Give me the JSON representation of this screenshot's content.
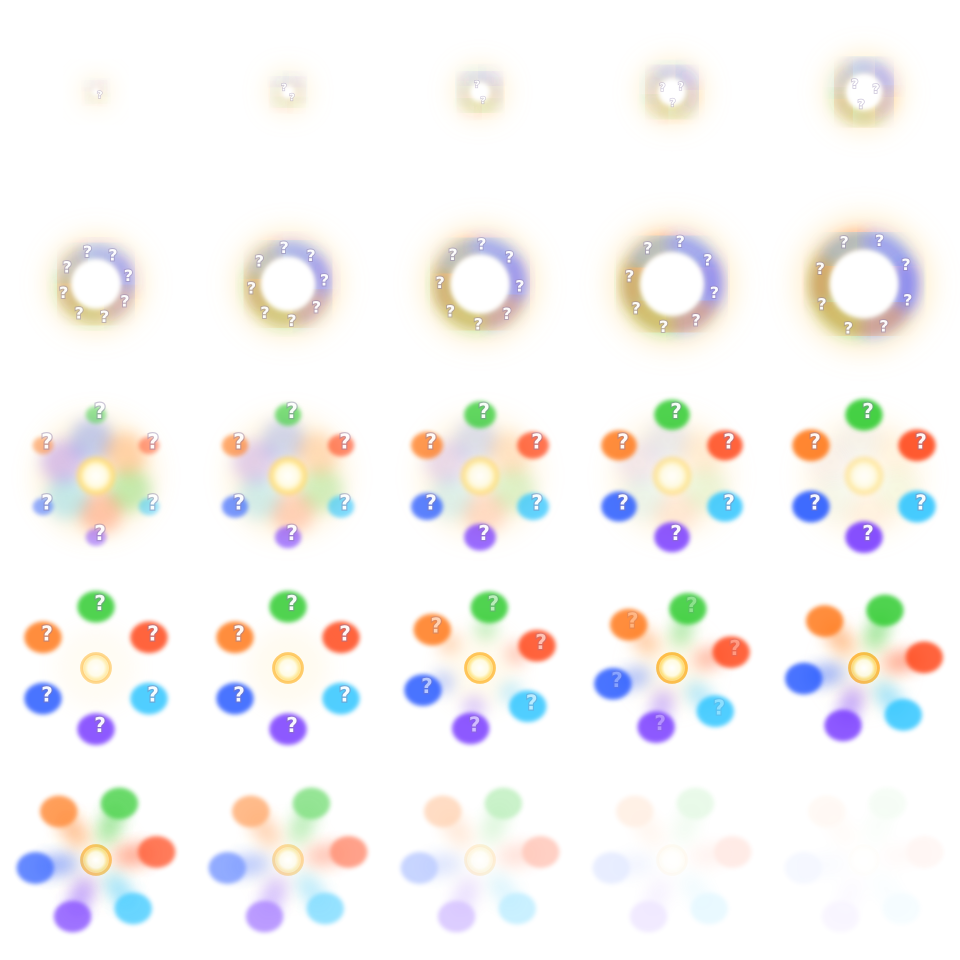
{
  "sheet": {
    "columns": 5,
    "rows": 5,
    "glyph": "?",
    "orb_colors": [
      "#33cc33",
      "#ff4a1a",
      "#33c6ff",
      "#7a3cff",
      "#2a5cff",
      "#ff7a1a"
    ],
    "glow_color": "#ffd27a",
    "core_color": "#fff6a8",
    "frames": [
      {
        "phase": "burst",
        "scale": 0.18,
        "alpha": 1.0,
        "swirl": 0.2,
        "shards": 0,
        "core": 0.5
      },
      {
        "phase": "burst",
        "scale": 0.26,
        "alpha": 1.0,
        "swirl": 0.3,
        "shards": 0,
        "core": 0.6
      },
      {
        "phase": "burst",
        "scale": 0.34,
        "alpha": 1.0,
        "swirl": 0.4,
        "shards": 0,
        "core": 0.7
      },
      {
        "phase": "burst",
        "scale": 0.42,
        "alpha": 1.0,
        "swirl": 0.5,
        "shards": 0,
        "core": 0.8
      },
      {
        "phase": "burst",
        "scale": 0.5,
        "alpha": 1.0,
        "swirl": 0.6,
        "shards": 0,
        "core": 0.9
      },
      {
        "phase": "swirl",
        "scale": 0.62,
        "alpha": 1.0,
        "swirl": 0.7,
        "shards": 8,
        "core": 1.0
      },
      {
        "phase": "swirl",
        "scale": 0.68,
        "alpha": 1.0,
        "swirl": 0.75,
        "shards": 8,
        "core": 1.0
      },
      {
        "phase": "swirl",
        "scale": 0.74,
        "alpha": 1.0,
        "swirl": 0.8,
        "shards": 8,
        "core": 1.0
      },
      {
        "phase": "swirl",
        "scale": 0.8,
        "alpha": 1.0,
        "swirl": 0.85,
        "shards": 8,
        "core": 1.0
      },
      {
        "phase": "swirl",
        "scale": 0.86,
        "alpha": 1.0,
        "swirl": 0.9,
        "shards": 8,
        "core": 1.0
      },
      {
        "phase": "form",
        "scale": 1.0,
        "alpha": 1.0,
        "swirl": 0.8,
        "orbs": 0.55,
        "core": 1.0
      },
      {
        "phase": "form",
        "scale": 1.0,
        "alpha": 1.0,
        "swirl": 0.6,
        "orbs": 0.7,
        "core": 1.0
      },
      {
        "phase": "form",
        "scale": 1.0,
        "alpha": 1.0,
        "swirl": 0.45,
        "orbs": 0.85,
        "core": 0.9
      },
      {
        "phase": "form",
        "scale": 1.0,
        "alpha": 1.0,
        "swirl": 0.25,
        "orbs": 0.95,
        "core": 0.8
      },
      {
        "phase": "form",
        "scale": 1.0,
        "alpha": 1.0,
        "swirl": 0.1,
        "orbs": 1.0,
        "core": 0.7
      },
      {
        "phase": "orbs",
        "scale": 1.0,
        "alpha": 1.0,
        "trail": 0.0,
        "ring": 0.6
      },
      {
        "phase": "orbs",
        "scale": 1.0,
        "alpha": 1.0,
        "trail": 0.0,
        "ring": 0.8
      },
      {
        "phase": "orbs",
        "scale": 1.0,
        "alpha": 1.0,
        "trail": 0.35,
        "ring": 0.9
      },
      {
        "phase": "orbs",
        "scale": 1.0,
        "alpha": 1.0,
        "trail": 0.6,
        "ring": 1.0
      },
      {
        "phase": "orbs",
        "scale": 1.0,
        "alpha": 1.0,
        "trail": 0.8,
        "ring": 1.0
      },
      {
        "phase": "fade",
        "scale": 1.0,
        "alpha": 0.85,
        "trail": 0.9,
        "ring": 1.0
      },
      {
        "phase": "fade",
        "scale": 1.0,
        "alpha": 0.6,
        "trail": 0.9,
        "ring": 0.9
      },
      {
        "phase": "fade",
        "scale": 1.0,
        "alpha": 0.3,
        "trail": 0.9,
        "ring": 0.7
      },
      {
        "phase": "fade",
        "scale": 1.0,
        "alpha": 0.12,
        "trail": 0.9,
        "ring": 0.5
      },
      {
        "phase": "fade",
        "scale": 1.0,
        "alpha": 0.05,
        "trail": 0.9,
        "ring": 0.3
      }
    ]
  }
}
